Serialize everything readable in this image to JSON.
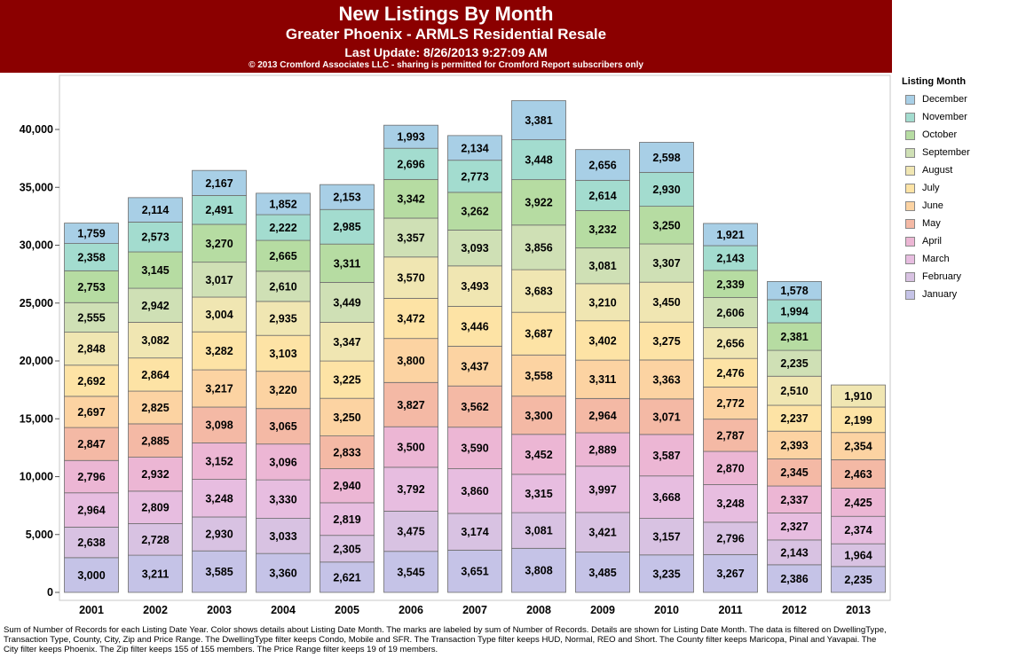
{
  "header": {
    "title": "New Listings By Month",
    "subtitle": "Greater Phoenix - ARMLS Residential Resale",
    "last_update": "Last Update: 8/26/2013 9:27:09 AM",
    "copyright": "© 2013 Cromford Associates LLC - sharing is permitted for Cromford Report subscribers only"
  },
  "legend": {
    "title": "Listing Month",
    "items": [
      {
        "label": "December",
        "color": "#a8cfe6"
      },
      {
        "label": "November",
        "color": "#a3dccf"
      },
      {
        "label": "October",
        "color": "#b6dca2"
      },
      {
        "label": "September",
        "color": "#cfe0b5"
      },
      {
        "label": "August",
        "color": "#f0e6b2"
      },
      {
        "label": "July",
        "color": "#fde3a5"
      },
      {
        "label": "June",
        "color": "#fcd3a2"
      },
      {
        "label": "May",
        "color": "#f4b9a5"
      },
      {
        "label": "April",
        "color": "#ecb6d4"
      },
      {
        "label": "March",
        "color": "#e7bde0"
      },
      {
        "label": "February",
        "color": "#d8c2e2"
      },
      {
        "label": "January",
        "color": "#c5c3e7"
      }
    ]
  },
  "chart_data": {
    "type": "bar",
    "stacked": true,
    "title": "New Listings By Month",
    "xlabel": "",
    "ylabel": "",
    "ylim": [
      0,
      44000
    ],
    "y_ticks": [
      0,
      5000,
      10000,
      15000,
      20000,
      25000,
      30000,
      35000,
      40000
    ],
    "y_tick_labels": [
      "0",
      "5,000",
      "10,000",
      "15,000",
      "20,000",
      "25,000",
      "30,000",
      "35,000",
      "40,000"
    ],
    "grid": false,
    "legend_position": "right",
    "categories": [
      "2001",
      "2002",
      "2003",
      "2004",
      "2005",
      "2006",
      "2007",
      "2008",
      "2009",
      "2010",
      "2011",
      "2012",
      "2013"
    ],
    "series": [
      {
        "name": "January",
        "color": "#c5c3e7",
        "values": [
          3000,
          3211,
          3585,
          3360,
          2621,
          3545,
          3651,
          3808,
          3485,
          3235,
          3267,
          2386,
          2235
        ]
      },
      {
        "name": "February",
        "color": "#d8c2e2",
        "values": [
          2638,
          2728,
          2930,
          3033,
          2305,
          3475,
          3174,
          3081,
          3421,
          3157,
          2796,
          2143,
          1964
        ]
      },
      {
        "name": "March",
        "color": "#e7bde0",
        "values": [
          2964,
          2809,
          3248,
          3330,
          2819,
          3792,
          3860,
          3315,
          3997,
          3668,
          3248,
          2327,
          2374
        ]
      },
      {
        "name": "April",
        "color": "#ecb6d4",
        "values": [
          2796,
          2932,
          3152,
          3096,
          2940,
          3500,
          3590,
          3452,
          2889,
          3587,
          2870,
          2337,
          2425
        ]
      },
      {
        "name": "May",
        "color": "#f4b9a5",
        "values": [
          2847,
          2885,
          3098,
          3065,
          2833,
          3827,
          3562,
          3300,
          2964,
          3071,
          2787,
          2345,
          2463
        ]
      },
      {
        "name": "June",
        "color": "#fcd3a2",
        "values": [
          2697,
          2825,
          3217,
          3220,
          3250,
          3800,
          3437,
          3558,
          3311,
          3363,
          2772,
          2393,
          2354
        ]
      },
      {
        "name": "July",
        "color": "#fde3a5",
        "values": [
          2692,
          2864,
          3282,
          3103,
          3225,
          3472,
          3446,
          3687,
          3402,
          3275,
          2476,
          2237,
          2199
        ]
      },
      {
        "name": "August",
        "color": "#f0e6b2",
        "values": [
          2848,
          3082,
          3004,
          2935,
          3347,
          3570,
          3493,
          3683,
          3210,
          3450,
          2656,
          2510,
          1910
        ]
      },
      {
        "name": "September",
        "color": "#cfe0b5",
        "values": [
          2555,
          2942,
          3017,
          2610,
          3449,
          3357,
          3093,
          3856,
          3081,
          3307,
          2606,
          2235,
          null
        ]
      },
      {
        "name": "October",
        "color": "#b6dca2",
        "values": [
          2753,
          3145,
          3270,
          2665,
          3311,
          3342,
          3262,
          3922,
          3232,
          3250,
          2339,
          2381,
          null
        ]
      },
      {
        "name": "November",
        "color": "#a3dccf",
        "values": [
          2358,
          2573,
          2491,
          2222,
          2985,
          2696,
          2773,
          3448,
          2614,
          2930,
          2143,
          1994,
          null
        ]
      },
      {
        "name": "December",
        "color": "#a8cfe6",
        "values": [
          1759,
          2114,
          2167,
          1852,
          2153,
          1993,
          2134,
          3381,
          2656,
          2598,
          1921,
          1578,
          null
        ]
      }
    ]
  },
  "footer": {
    "text": "Sum of Number of Records for each Listing Date Year.  Color shows details about Listing Date Month.  The marks are labeled by sum of Number of Records.  Details are shown for Listing Date Month.  The data is filtered on DwellingType, Transaction Type, County, City, Zip and Price Range. The DwellingType filter keeps Condo, Mobile and SFR. The Transaction Type filter keeps HUD, Normal, REO and Short. The County filter keeps Maricopa, Pinal and Yavapai. The City filter keeps Phoenix. The Zip filter keeps 155 of 155 members. The Price Range filter keeps 19 of 19 members."
  }
}
